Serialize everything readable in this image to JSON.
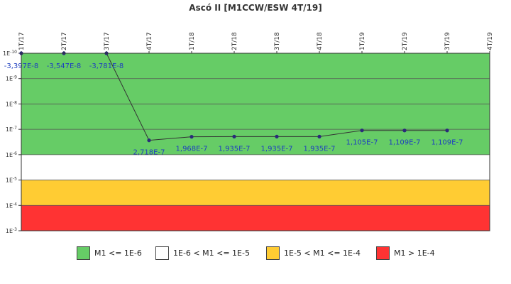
{
  "chart_data": {
    "type": "line",
    "title": "Ascó II [M1CCW/ESW 4T/19]",
    "x": [
      "1T/17",
      "2T/17",
      "3T/17",
      "4T/17",
      "1T/18",
      "2T/18",
      "3T/18",
      "4T/18",
      "1T/19",
      "2T/19",
      "3T/19",
      "4T/19"
    ],
    "y_scale": "log",
    "y_ticks": [
      "1E-10",
      "1E-9",
      "1E-8",
      "1E-7",
      "1E-6",
      "1E-5",
      "1E-4",
      "1E-3"
    ],
    "y_range": [
      1e-10,
      0.001
    ],
    "series": [
      {
        "values": [
          -3.397e-08,
          -3.547e-08,
          -3.781e-08,
          2.718e-07,
          1.968e-07,
          1.935e-07,
          1.935e-07,
          1.935e-07,
          1.105e-07,
          1.109e-07,
          1.109e-07,
          null
        ],
        "labels": [
          "-3,397E-8",
          "-3,547E-8",
          "-3,781E-8",
          "2,718E-7",
          "1,968E-7",
          "1,935E-7",
          "1,935E-7",
          "1,935E-7",
          "1,105E-7",
          "1,109E-7",
          "1,109E-7",
          ""
        ],
        "color": "#2a2a7a"
      }
    ],
    "bands": [
      {
        "from": 1e-10,
        "to": 1e-06,
        "color": "#66cc66",
        "label": "M1 <= 1E-6"
      },
      {
        "from": 1e-06,
        "to": 1e-05,
        "color": "#ffffff",
        "label": "1E-6 < M1 <= 1E-5"
      },
      {
        "from": 1e-05,
        "to": 0.0001,
        "color": "#ffcc33",
        "label": "1E-5 < M1 <= 1E-4"
      },
      {
        "from": 0.0001,
        "to": 0.001,
        "color": "#ff3333",
        "label": "M1 > 1E-4"
      }
    ],
    "legend_position": "bottom"
  }
}
